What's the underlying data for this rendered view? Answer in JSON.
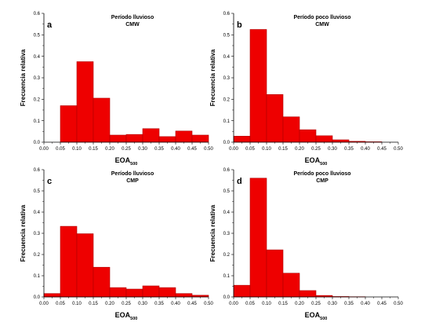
{
  "colors": {
    "bar_fill": "#ee0000",
    "bar_stroke": "#b00000",
    "axis": "#000000"
  },
  "chart_data": [
    {
      "type": "bar",
      "panel_label": "a",
      "title": "Período lluvioso",
      "subtitle": "CMW",
      "xlabel": "EOA",
      "xlabel_sub": "500",
      "ylabel": "Frecuencia relativa",
      "xlim": [
        0,
        0.5
      ],
      "ylim": [
        0,
        0.6
      ],
      "xticks": [
        "0.00",
        "0.05",
        "0.10",
        "0.15",
        "0.20",
        "0.25",
        "0.30",
        "0.35",
        "0.40",
        "0.45",
        "0.50"
      ],
      "yticks": [
        "0.0",
        "0.1",
        "0.2",
        "0.3",
        "0.4",
        "0.5",
        "0.6"
      ],
      "bins": [
        [
          0.0,
          0.05
        ],
        [
          0.05,
          0.1
        ],
        [
          0.1,
          0.15
        ],
        [
          0.15,
          0.2
        ],
        [
          0.2,
          0.25
        ],
        [
          0.25,
          0.3
        ],
        [
          0.3,
          0.35
        ],
        [
          0.35,
          0.4
        ],
        [
          0.4,
          0.45
        ],
        [
          0.45,
          0.5
        ]
      ],
      "values": [
        0.0,
        0.17,
        0.375,
        0.205,
        0.033,
        0.036,
        0.063,
        0.026,
        0.052,
        0.033
      ]
    },
    {
      "type": "bar",
      "panel_label": "b",
      "title": "Período poco lluvioso",
      "subtitle": "CMW",
      "xlabel": "EOA",
      "xlabel_sub": "500",
      "ylabel": "Frecuencia relativa",
      "xlim": [
        0,
        0.5
      ],
      "ylim": [
        0,
        0.6
      ],
      "xticks": [
        "0.00",
        "0.05",
        "0.10",
        "0.15",
        "0.20",
        "0.25",
        "0.30",
        "0.35",
        "0.40",
        "0.45",
        "0.50"
      ],
      "yticks": [
        "0.0",
        "0.1",
        "0.2",
        "0.3",
        "0.4",
        "0.5",
        "0.6"
      ],
      "bins": [
        [
          0.0,
          0.05
        ],
        [
          0.05,
          0.1
        ],
        [
          0.1,
          0.15
        ],
        [
          0.15,
          0.2
        ],
        [
          0.2,
          0.25
        ],
        [
          0.25,
          0.3
        ],
        [
          0.3,
          0.35
        ],
        [
          0.35,
          0.4
        ],
        [
          0.4,
          0.45
        ],
        [
          0.45,
          0.5
        ]
      ],
      "values": [
        0.028,
        0.525,
        0.222,
        0.118,
        0.058,
        0.03,
        0.011,
        0.004,
        0.002,
        0.0
      ]
    },
    {
      "type": "bar",
      "panel_label": "c",
      "title": "Período lluvioso",
      "subtitle": "CMP",
      "xlabel": "EOA",
      "xlabel_sub": "500",
      "ylabel": "Frecuencia relativa",
      "xlim": [
        0,
        0.5
      ],
      "ylim": [
        0,
        0.6
      ],
      "xticks": [
        "0.00",
        "0.05",
        "0.10",
        "0.15",
        "0.20",
        "0.25",
        "0.30",
        "0.35",
        "0.40",
        "0.45",
        "0.50"
      ],
      "yticks": [
        "0.0",
        "0.1",
        "0.2",
        "0.3",
        "0.4",
        "0.5",
        "0.6"
      ],
      "bins": [
        [
          0.0,
          0.05
        ],
        [
          0.05,
          0.1
        ],
        [
          0.1,
          0.15
        ],
        [
          0.15,
          0.2
        ],
        [
          0.2,
          0.25
        ],
        [
          0.25,
          0.3
        ],
        [
          0.3,
          0.35
        ],
        [
          0.35,
          0.4
        ],
        [
          0.4,
          0.45
        ],
        [
          0.45,
          0.5
        ]
      ],
      "values": [
        0.016,
        0.333,
        0.298,
        0.14,
        0.044,
        0.037,
        0.052,
        0.044,
        0.016,
        0.008
      ]
    },
    {
      "type": "bar",
      "panel_label": "d",
      "title": "Período poco lluvioso",
      "subtitle": "CMP",
      "xlabel": "EOA",
      "xlabel_sub": "500",
      "ylabel": "Frecuencia relativa",
      "xlim": [
        0,
        0.5
      ],
      "ylim": [
        0,
        0.6
      ],
      "xticks": [
        "0.00",
        "0.05",
        "0.10",
        "0.15",
        "0.20",
        "0.25",
        "0.30",
        "0.35",
        "0.40",
        "0.45",
        "0.50"
      ],
      "yticks": [
        "0.0",
        "0.1",
        "0.2",
        "0.3",
        "0.4",
        "0.5",
        "0.6"
      ],
      "bins": [
        [
          0.0,
          0.05
        ],
        [
          0.05,
          0.1
        ],
        [
          0.1,
          0.15
        ],
        [
          0.15,
          0.2
        ],
        [
          0.2,
          0.25
        ],
        [
          0.25,
          0.3
        ],
        [
          0.3,
          0.35
        ],
        [
          0.35,
          0.4
        ],
        [
          0.4,
          0.45
        ],
        [
          0.45,
          0.5
        ]
      ],
      "values": [
        0.055,
        0.56,
        0.222,
        0.112,
        0.03,
        0.007,
        0.002,
        0.001,
        0.0,
        0.0
      ]
    }
  ]
}
